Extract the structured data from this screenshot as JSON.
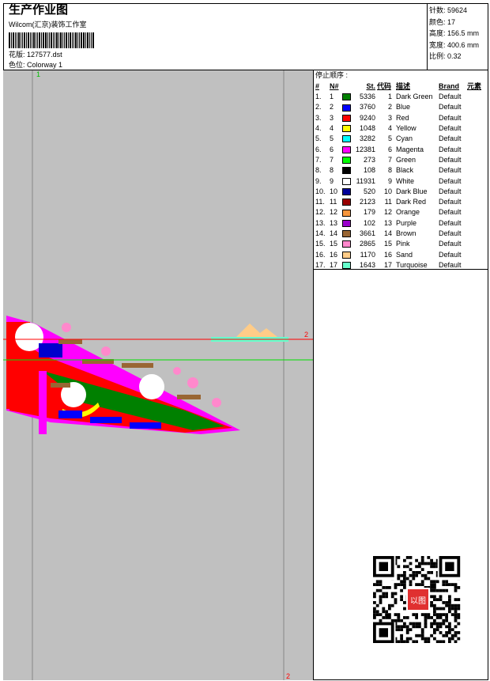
{
  "header": {
    "title": "生产作业图",
    "subtitle": "Wilcom(汇京)装饰工作室",
    "file_label": "花版:",
    "file": "127577.dst",
    "colorway_label": "色位:",
    "colorway": "Colorway 1"
  },
  "info": [
    {
      "label": "针数:",
      "value": "59624"
    },
    {
      "label": "颜色:",
      "value": "17"
    },
    {
      "label": "高度:",
      "value": "156.5 mm"
    },
    {
      "label": "宽度:",
      "value": "400.6 mm"
    },
    {
      "label": "比例:",
      "value": "0.32"
    }
  ],
  "design": {
    "marker_1": "1",
    "marker_2_right": "2",
    "marker_2_bottom": "2",
    "start_color": "#00e000",
    "end_color": "#ff0000"
  },
  "stop_sequence": {
    "title": "停止顺序 :",
    "headers": [
      "#",
      "N#",
      "St.",
      "代码",
      "描述",
      "Brand",
      "元素"
    ],
    "rows": [
      [
        "1.",
        "1",
        "#008000",
        "5336",
        "1",
        "Dark Green",
        "Default"
      ],
      [
        "2.",
        "2",
        "#0000ff",
        "3760",
        "2",
        "Blue",
        "Default"
      ],
      [
        "3.",
        "3",
        "#ff0000",
        "9240",
        "3",
        "Red",
        "Default"
      ],
      [
        "4.",
        "4",
        "#ffff00",
        "1048",
        "4",
        "Yellow",
        "Default"
      ],
      [
        "5.",
        "5",
        "#00ffff",
        "3282",
        "5",
        "Cyan",
        "Default"
      ],
      [
        "6.",
        "6",
        "#ff00ff",
        "12381",
        "6",
        "Magenta",
        "Default"
      ],
      [
        "7.",
        "7",
        "#00ff00",
        "273",
        "7",
        "Green",
        "Default"
      ],
      [
        "8.",
        "8",
        "#000000",
        "108",
        "8",
        "Black",
        "Default"
      ],
      [
        "9.",
        "9",
        "#ffffff",
        "11931",
        "9",
        "White",
        "Default"
      ],
      [
        "10.",
        "10",
        "#000099",
        "520",
        "10",
        "Dark Blue",
        "Default"
      ],
      [
        "11.",
        "11",
        "#990000",
        "2123",
        "11",
        "Dark Red",
        "Default"
      ],
      [
        "12.",
        "12",
        "#f7963c",
        "179",
        "12",
        "Orange",
        "Default"
      ],
      [
        "13.",
        "13",
        "#9900cc",
        "102",
        "13",
        "Purple",
        "Default"
      ],
      [
        "14.",
        "14",
        "#996633",
        "3661",
        "14",
        "Brown",
        "Default"
      ],
      [
        "15.",
        "15",
        "#ff88cc",
        "2865",
        "15",
        "Pink",
        "Default"
      ],
      [
        "16.",
        "16",
        "#ffcc88",
        "1170",
        "16",
        "Sand",
        "Default"
      ],
      [
        "17.",
        "17",
        "#66ffcc",
        "1643",
        "17",
        "Turquoise",
        "Default"
      ]
    ]
  },
  "qr": {
    "stamp_text": "以图搜版"
  }
}
